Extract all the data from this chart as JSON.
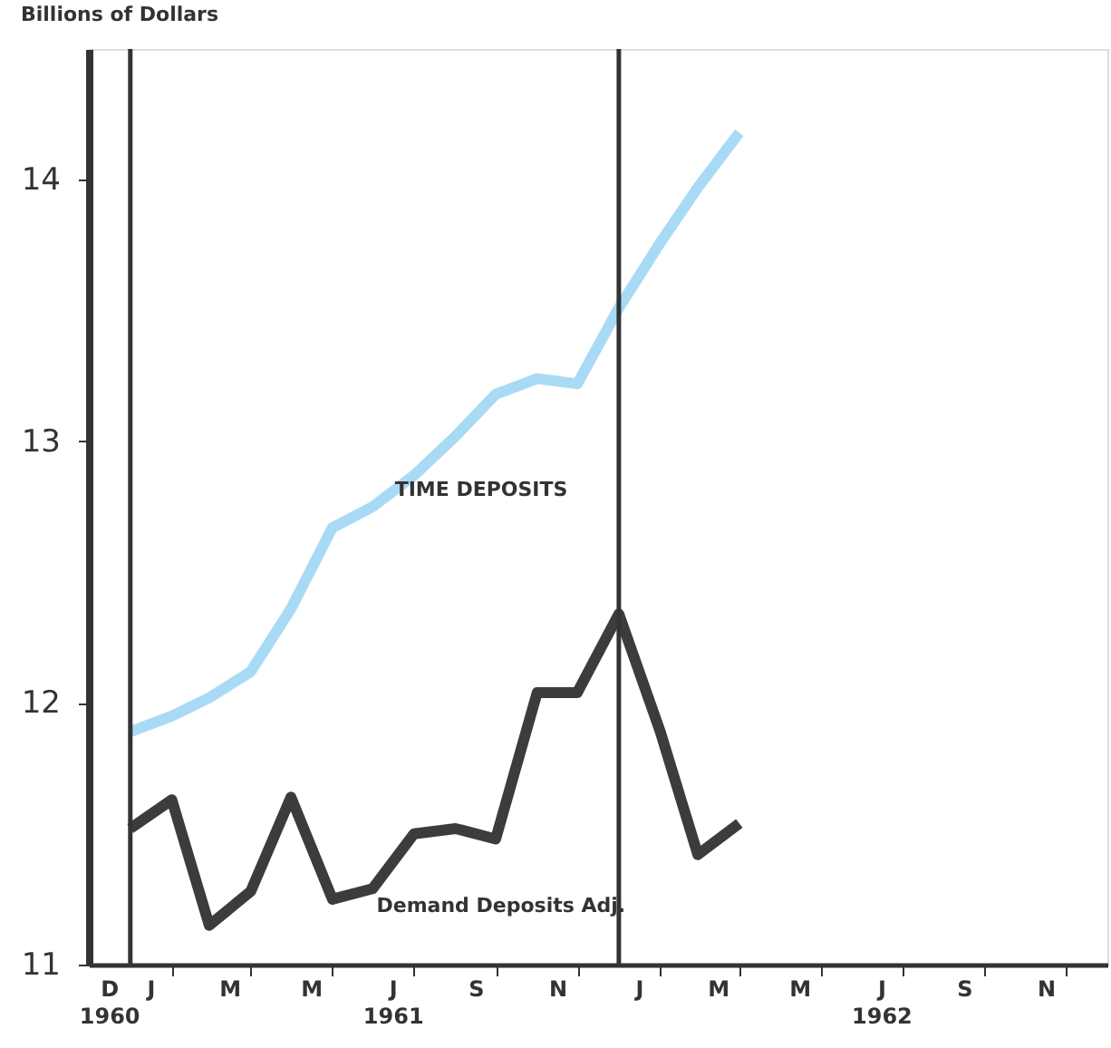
{
  "chart_data": {
    "type": "line",
    "ylabel": "Billions of Dollars",
    "x": [
      "1961-01-01",
      "1961-02-01",
      "1961-03-01",
      "1961-04-01",
      "1961-05-01",
      "1961-06-01",
      "1961-07-01",
      "1961-08-01",
      "1961-09-01",
      "1961-10-01",
      "1961-11-01",
      "1961-12-01",
      "1962-01-01",
      "1962-02-01",
      "1962-03-01",
      "1962-04-01"
    ],
    "series": [
      {
        "name": "TIME DEPOSITS",
        "color": "#a9daf5",
        "values": [
          11.89,
          11.95,
          12.02,
          12.12,
          12.36,
          12.67,
          12.75,
          12.87,
          13.02,
          13.18,
          13.24,
          13.22,
          13.51,
          13.76,
          13.97,
          14.18
        ]
      },
      {
        "name": "Demand Deposits Adj.",
        "color": "#3c3c3c",
        "values": [
          11.52,
          11.63,
          11.15,
          11.28,
          11.64,
          11.25,
          11.29,
          11.5,
          11.52,
          11.48,
          12.04,
          12.04,
          12.34,
          11.89,
          11.42,
          11.54
        ]
      }
    ],
    "ylim": [
      11,
      14.5
    ],
    "yticks": [
      11,
      12,
      13,
      14
    ],
    "xlim": [
      "1960-12-01",
      "1963-01-01"
    ],
    "xticks": [
      {
        "value": "1960-12-16",
        "label": "D\n1960"
      },
      {
        "value": "1961-01-16",
        "label": "J"
      },
      {
        "value": "1961-02-01",
        "label": null
      },
      {
        "value": "1961-03-16",
        "label": "M"
      },
      {
        "value": "1961-04-01",
        "label": null
      },
      {
        "value": "1961-05-16",
        "label": "M"
      },
      {
        "value": "1961-06-01",
        "label": null
      },
      {
        "value": "1961-07-16",
        "label": "J\n1961"
      },
      {
        "value": "1961-08-01",
        "label": null
      },
      {
        "value": "1961-09-16",
        "label": "S"
      },
      {
        "value": "1961-10-01",
        "label": null
      },
      {
        "value": "1961-11-16",
        "label": "N"
      },
      {
        "value": "1961-12-01",
        "label": null
      },
      {
        "value": "1962-01-16",
        "label": "J"
      },
      {
        "value": "1962-02-01",
        "label": null
      },
      {
        "value": "1962-03-16",
        "label": "M"
      },
      {
        "value": "1962-04-01",
        "label": null
      },
      {
        "value": "1962-05-16",
        "label": "M"
      },
      {
        "value": "1962-06-01",
        "label": null
      },
      {
        "value": "1962-07-16",
        "label": "J\n1962"
      },
      {
        "value": "1962-08-01",
        "label": null
      },
      {
        "value": "1962-09-16",
        "label": "S"
      },
      {
        "value": "1962-10-01",
        "label": null
      },
      {
        "value": "1962-11-16",
        "label": "N"
      },
      {
        "value": "1962-12-01",
        "label": null
      }
    ],
    "ref_lines": [
      {
        "axis": "x",
        "value": "1961-01-01",
        "color": "#333333"
      },
      {
        "axis": "x",
        "value": "1962-01-01",
        "color": "#333333"
      }
    ],
    "grid": false
  }
}
